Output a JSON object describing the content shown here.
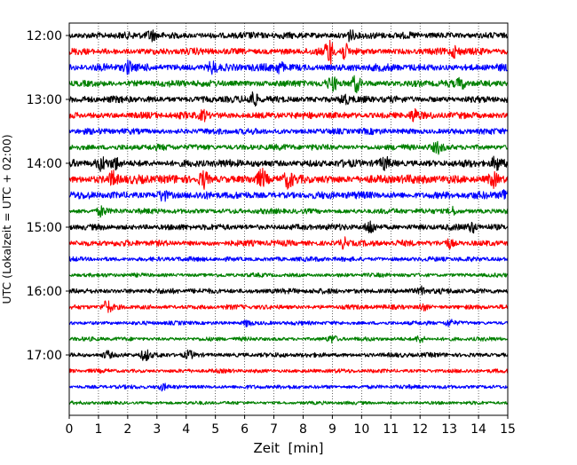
{
  "chart_data": {
    "type": "line",
    "title": "",
    "xlabel": "Zeit  [min]",
    "ylabel": "UTC (Lokalzeit = UTC + 02:00)",
    "xlim": [
      0,
      15
    ],
    "x_ticks": [
      "0",
      "1",
      "2",
      "3",
      "4",
      "5",
      "6",
      "7",
      "8",
      "9",
      "10",
      "11",
      "12",
      "13",
      "14",
      "15"
    ],
    "y_tick_labels": [
      "12:00",
      "13:00",
      "14:00",
      "15:00",
      "16:00",
      "17:00"
    ],
    "grid": "vertical dotted lines at each minute",
    "colors": [
      "#000000",
      "#ff0000",
      "#0000ff",
      "#008000"
    ],
    "trace_interval_minutes": 15,
    "series": [
      {
        "start": "12:00",
        "color": "#000000",
        "amplitude": 1.0,
        "events": [
          {
            "t": 2.8,
            "amp": 2.2
          },
          {
            "t": 9.6,
            "amp": 2.2
          }
        ]
      },
      {
        "start": "12:15",
        "color": "#ff0000",
        "amplitude": 1.0,
        "events": [
          {
            "t": 8.9,
            "amp": 5.0
          },
          {
            "t": 9.4,
            "amp": 3.0
          },
          {
            "t": 13.2,
            "amp": 2.2
          }
        ]
      },
      {
        "start": "12:30",
        "color": "#0000ff",
        "amplitude": 1.1,
        "events": [
          {
            "t": 2.0,
            "amp": 2.0
          },
          {
            "t": 4.9,
            "amp": 2.0
          },
          {
            "t": 7.2,
            "amp": 2.0
          }
        ]
      },
      {
        "start": "12:45",
        "color": "#008000",
        "amplitude": 1.0,
        "events": [
          {
            "t": 9.0,
            "amp": 2.5
          },
          {
            "t": 9.8,
            "amp": 3.2
          },
          {
            "t": 13.4,
            "amp": 1.8
          }
        ]
      },
      {
        "start": "13:00",
        "color": "#000000",
        "amplitude": 1.0,
        "events": [
          {
            "t": 6.3,
            "amp": 3.0
          },
          {
            "t": 9.4,
            "amp": 2.0
          }
        ]
      },
      {
        "start": "13:15",
        "color": "#ff0000",
        "amplitude": 1.0,
        "events": [
          {
            "t": 4.6,
            "amp": 2.0
          },
          {
            "t": 11.8,
            "amp": 2.2
          }
        ]
      },
      {
        "start": "13:30",
        "color": "#0000ff",
        "amplitude": 0.9,
        "events": []
      },
      {
        "start": "13:45",
        "color": "#008000",
        "amplitude": 0.9,
        "events": [
          {
            "t": 12.6,
            "amp": 2.0
          }
        ]
      },
      {
        "start": "14:00",
        "color": "#000000",
        "amplitude": 1.1,
        "events": [
          {
            "t": 1.1,
            "amp": 2.0
          },
          {
            "t": 1.6,
            "amp": 1.8
          },
          {
            "t": 10.8,
            "amp": 1.8
          },
          {
            "t": 14.6,
            "amp": 2.2
          }
        ]
      },
      {
        "start": "14:15",
        "color": "#ff0000",
        "amplitude": 1.3,
        "events": [
          {
            "t": 1.5,
            "amp": 2.2
          },
          {
            "t": 4.6,
            "amp": 2.5
          },
          {
            "t": 6.6,
            "amp": 2.5
          },
          {
            "t": 7.5,
            "amp": 2.0
          },
          {
            "t": 14.5,
            "amp": 2.0
          }
        ]
      },
      {
        "start": "14:30",
        "color": "#0000ff",
        "amplitude": 1.1,
        "events": [
          {
            "t": 14.9,
            "amp": 2.2
          },
          {
            "t": 3.2,
            "amp": 1.8
          }
        ]
      },
      {
        "start": "14:45",
        "color": "#008000",
        "amplitude": 0.8,
        "events": [
          {
            "t": 1.1,
            "amp": 2.2
          },
          {
            "t": 13.1,
            "amp": 1.8
          }
        ]
      },
      {
        "start": "15:00",
        "color": "#000000",
        "amplitude": 0.9,
        "events": [
          {
            "t": 10.3,
            "amp": 3.0
          },
          {
            "t": 13.8,
            "amp": 2.0
          }
        ]
      },
      {
        "start": "15:15",
        "color": "#ff0000",
        "amplitude": 0.9,
        "events": [
          {
            "t": 9.4,
            "amp": 2.2
          },
          {
            "t": 13.0,
            "amp": 1.8
          }
        ]
      },
      {
        "start": "15:30",
        "color": "#0000ff",
        "amplitude": 0.7,
        "events": []
      },
      {
        "start": "15:45",
        "color": "#008000",
        "amplitude": 0.6,
        "events": []
      },
      {
        "start": "16:00",
        "color": "#000000",
        "amplitude": 0.8,
        "events": [
          {
            "t": 12.1,
            "amp": 2.0
          }
        ]
      },
      {
        "start": "16:15",
        "color": "#ff0000",
        "amplitude": 0.7,
        "events": [
          {
            "t": 1.3,
            "amp": 3.5
          },
          {
            "t": 12.1,
            "amp": 1.8
          }
        ]
      },
      {
        "start": "16:30",
        "color": "#0000ff",
        "amplitude": 0.6,
        "events": [
          {
            "t": 6.1,
            "amp": 2.2
          },
          {
            "t": 13.0,
            "amp": 2.0
          }
        ]
      },
      {
        "start": "16:45",
        "color": "#008000",
        "amplitude": 0.6,
        "events": [
          {
            "t": 9.0,
            "amp": 2.2
          },
          {
            "t": 12.0,
            "amp": 2.5
          }
        ]
      },
      {
        "start": "17:00",
        "color": "#000000",
        "amplitude": 0.7,
        "events": [
          {
            "t": 1.3,
            "amp": 2.0
          },
          {
            "t": 2.6,
            "amp": 3.0
          },
          {
            "t": 4.1,
            "amp": 2.0
          }
        ]
      },
      {
        "start": "17:15",
        "color": "#ff0000",
        "amplitude": 0.6,
        "events": []
      },
      {
        "start": "17:30",
        "color": "#0000ff",
        "amplitude": 0.6,
        "events": [
          {
            "t": 3.2,
            "amp": 1.6
          }
        ]
      },
      {
        "start": "17:45",
        "color": "#008000",
        "amplitude": 0.5,
        "events": []
      }
    ]
  }
}
